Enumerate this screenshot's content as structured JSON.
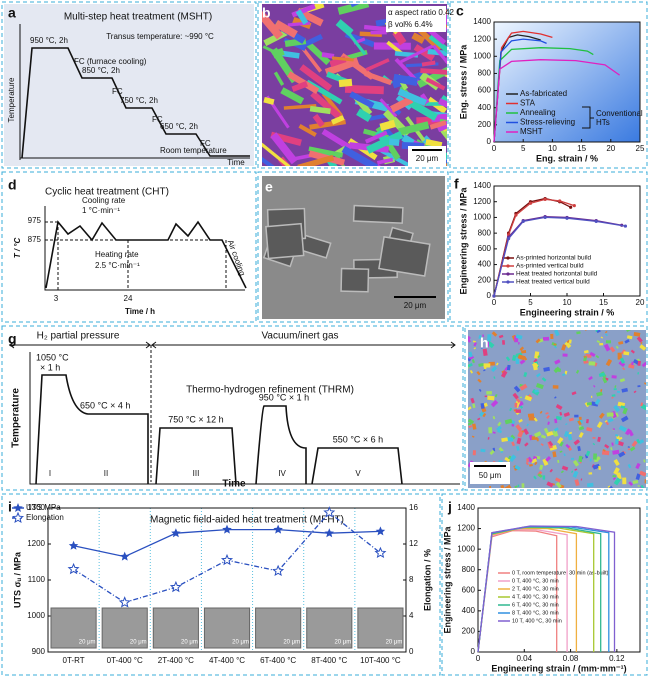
{
  "panels": {
    "a": {
      "label": "a",
      "title": "Multi-step heat treatment (MSHT)",
      "y_axis": "Temperature",
      "x_axis": "Time",
      "transus": "Transus temperature: ~990 °C",
      "steps": [
        "950 °C, 2h",
        "850 °C, 2h",
        "750 °C, 2h",
        "650 °C, 2h"
      ],
      "cooling": [
        "FC (furnace cooling)",
        "FC",
        "FC",
        "FC"
      ],
      "end": "Room temperature"
    },
    "b": {
      "label": "b",
      "notes": [
        "α aspect ratio 0.42",
        "β vol% 6.4%"
      ],
      "scale": "20 μm"
    },
    "d": {
      "label": "d",
      "title": "Cyclic heat treatment (CHT)",
      "cooling": [
        "Cooling rate",
        "1 °C·min⁻¹"
      ],
      "heating": [
        "Heating rate",
        "2.5 °C·min⁻¹"
      ],
      "air": "Air cooling",
      "y_axis": "T / °C",
      "x_axis": "Time / h",
      "yticks": [
        975,
        875
      ],
      "xticks": [
        3,
        24
      ]
    },
    "e": {
      "label": "e",
      "scale": "20 μm"
    },
    "g": {
      "label": "g",
      "left": "H₂ partial pressure",
      "right": "Vacuum/inert gas",
      "step1": [
        "1050 °C",
        "× 1 h"
      ],
      "step2": "650 °C × 4 h",
      "name": "Thermo-hydrogen refinement (THRM)",
      "step3": "750 °C × 12 h",
      "step4": "950 °C × 1 h",
      "step5": "550 °C × 6 h",
      "y_axis": "Temperature",
      "x_axis": "Time",
      "stages": [
        "I",
        "II",
        "III",
        "IV",
        "V"
      ]
    },
    "h": {
      "label": "h",
      "scale": "50 μm"
    }
  },
  "chart_data": [
    {
      "type": "line",
      "label": "c",
      "x_label": "Eng. strain / %",
      "y_label": "Eng. stress / MPa",
      "xlim": [
        0,
        25
      ],
      "ylim": [
        0,
        1400
      ],
      "xticks": [
        0,
        5,
        10,
        15,
        20,
        25
      ],
      "yticks": [
        0,
        200,
        400,
        600,
        800,
        1000,
        1200,
        1400
      ],
      "annotation": [
        "Conventional",
        "HTs"
      ],
      "series": [
        {
          "name": "As-fabricated",
          "color": "#222222",
          "x": [
            0,
            1.2,
            2.5,
            4,
            6,
            8
          ],
          "values": [
            0,
            1050,
            1220,
            1250,
            1230,
            1190
          ]
        },
        {
          "name": "STA",
          "color": "#e03030",
          "x": [
            0,
            1.3,
            3,
            5,
            8,
            10
          ],
          "values": [
            0,
            1100,
            1270,
            1290,
            1260,
            1220
          ]
        },
        {
          "name": "Annealing",
          "color": "#20c040",
          "x": [
            0,
            1,
            3,
            8,
            13,
            16,
            17
          ],
          "values": [
            0,
            950,
            1080,
            1100,
            1090,
            1060,
            1020
          ]
        },
        {
          "name": "Stress-relieving",
          "color": "#2050e0",
          "x": [
            0,
            1.2,
            3,
            5,
            8,
            9
          ],
          "values": [
            0,
            1050,
            1180,
            1200,
            1180,
            1150
          ]
        },
        {
          "name": "MSHT",
          "color": "#e020c0",
          "x": [
            0,
            1,
            3,
            8,
            14,
            19,
            21.5
          ],
          "values": [
            0,
            850,
            940,
            960,
            950,
            900,
            780
          ]
        }
      ]
    },
    {
      "type": "line",
      "label": "f",
      "x_label": "Engineering strain / %",
      "y_label": "Engineering stress / MPa",
      "xlim": [
        0,
        20
      ],
      "ylim": [
        0,
        1400
      ],
      "xticks": [
        0,
        5,
        10,
        15,
        20
      ],
      "yticks": [
        0,
        200,
        400,
        600,
        800,
        1000,
        1200,
        1400
      ],
      "marker": "circle",
      "series": [
        {
          "name": "As-printed horizontal build",
          "color": "#7a1010",
          "x": [
            0,
            2,
            3,
            5,
            7,
            9,
            10.5
          ],
          "values": [
            0,
            800,
            1050,
            1200,
            1240,
            1200,
            1130
          ]
        },
        {
          "name": "As-printed vertical build",
          "color": "#d04040",
          "x": [
            0,
            2,
            3,
            5,
            7,
            9,
            11
          ],
          "values": [
            0,
            780,
            1030,
            1180,
            1230,
            1210,
            1150
          ]
        },
        {
          "name": "Heat treated horizontal build",
          "color": "#6a2a90",
          "x": [
            0,
            2,
            4,
            7,
            10,
            14,
            17.5
          ],
          "values": [
            0,
            750,
            960,
            1010,
            1000,
            960,
            900
          ]
        },
        {
          "name": "Heat treated vertical build",
          "color": "#5050c0",
          "x": [
            0,
            2,
            4,
            7,
            10,
            14,
            18
          ],
          "values": [
            0,
            730,
            950,
            1000,
            990,
            950,
            890
          ]
        }
      ]
    },
    {
      "type": "line",
      "label": "i",
      "title": "Magnetic field-aided heat treatment (MFHT)",
      "y_label": "UTS σᵤ / MPa",
      "y2_label": "Elongation / %",
      "categories": [
        "0T-RT",
        "0T-400 °C",
        "2T-400 °C",
        "4T-400 °C",
        "6T-400 °C",
        "8T-400 °C",
        "10T-400 °C"
      ],
      "ylim": [
        900,
        1300
      ],
      "yticks": [
        900,
        1000,
        1100,
        1200,
        1300
      ],
      "y2lim": [
        0,
        16
      ],
      "y2ticks": [
        0,
        4,
        8,
        12,
        16
      ],
      "inset_scale": "20 μm",
      "series": [
        {
          "name": "UTS MPa",
          "color": "#2a50c0",
          "marker": "star",
          "values": [
            1195,
            1165,
            1230,
            1240,
            1240,
            1230,
            1235
          ]
        },
        {
          "name": "Elongation",
          "color": "#2a50c0",
          "marker": "open-star",
          "dash": true,
          "axis": "y2",
          "values": [
            9.2,
            5.5,
            7.2,
            10.2,
            9.0,
            15.5,
            11.0
          ]
        }
      ]
    },
    {
      "type": "line",
      "label": "j",
      "x_label": "Engineering strain / (mm·mm⁻¹)",
      "y_label": "Engineering stress / MPa",
      "xlim": [
        0,
        0.14
      ],
      "ylim": [
        0,
        1400
      ],
      "xticks": [
        0,
        0.04,
        0.08,
        0.12
      ],
      "yticks": [
        0,
        200,
        400,
        600,
        800,
        1000,
        1200,
        1400
      ],
      "series": [
        {
          "name": "0 T, room temperature, 30 min (as-built)",
          "color": "#f08080",
          "x": [
            0,
            0.012,
            0.03,
            0.05,
            0.068,
            0.068
          ],
          "values": [
            0,
            1120,
            1180,
            1175,
            1130,
            0
          ]
        },
        {
          "name": "0 T, 400 °C, 30 min",
          "color": "#f0a0c8",
          "x": [
            0,
            0.012,
            0.03,
            0.05,
            0.077,
            0.077
          ],
          "values": [
            0,
            1130,
            1190,
            1190,
            1140,
            0
          ]
        },
        {
          "name": "2 T, 400 °C, 30 min",
          "color": "#f0b040",
          "x": [
            0,
            0.012,
            0.035,
            0.06,
            0.085,
            0.085
          ],
          "values": [
            0,
            1140,
            1200,
            1200,
            1150,
            0
          ]
        },
        {
          "name": "4 T, 400 °C, 30 min",
          "color": "#a8c830",
          "x": [
            0,
            0.012,
            0.04,
            0.07,
            0.1,
            0.1
          ],
          "values": [
            0,
            1150,
            1210,
            1205,
            1150,
            0
          ]
        },
        {
          "name": "6 T, 400 °C, 30 min",
          "color": "#30b890",
          "x": [
            0,
            0.012,
            0.04,
            0.075,
            0.106,
            0.106
          ],
          "values": [
            0,
            1150,
            1215,
            1210,
            1150,
            0
          ]
        },
        {
          "name": "8 T, 400 °C, 30 min",
          "color": "#3090e0",
          "x": [
            0,
            0.012,
            0.045,
            0.08,
            0.113,
            0.113
          ],
          "values": [
            0,
            1160,
            1220,
            1215,
            1160,
            0
          ]
        },
        {
          "name": "10 T, 400 °C, 30 min",
          "color": "#8060d0",
          "x": [
            0,
            0.012,
            0.045,
            0.085,
            0.118,
            0.118
          ],
          "values": [
            0,
            1160,
            1225,
            1220,
            1165,
            0
          ]
        }
      ]
    }
  ]
}
